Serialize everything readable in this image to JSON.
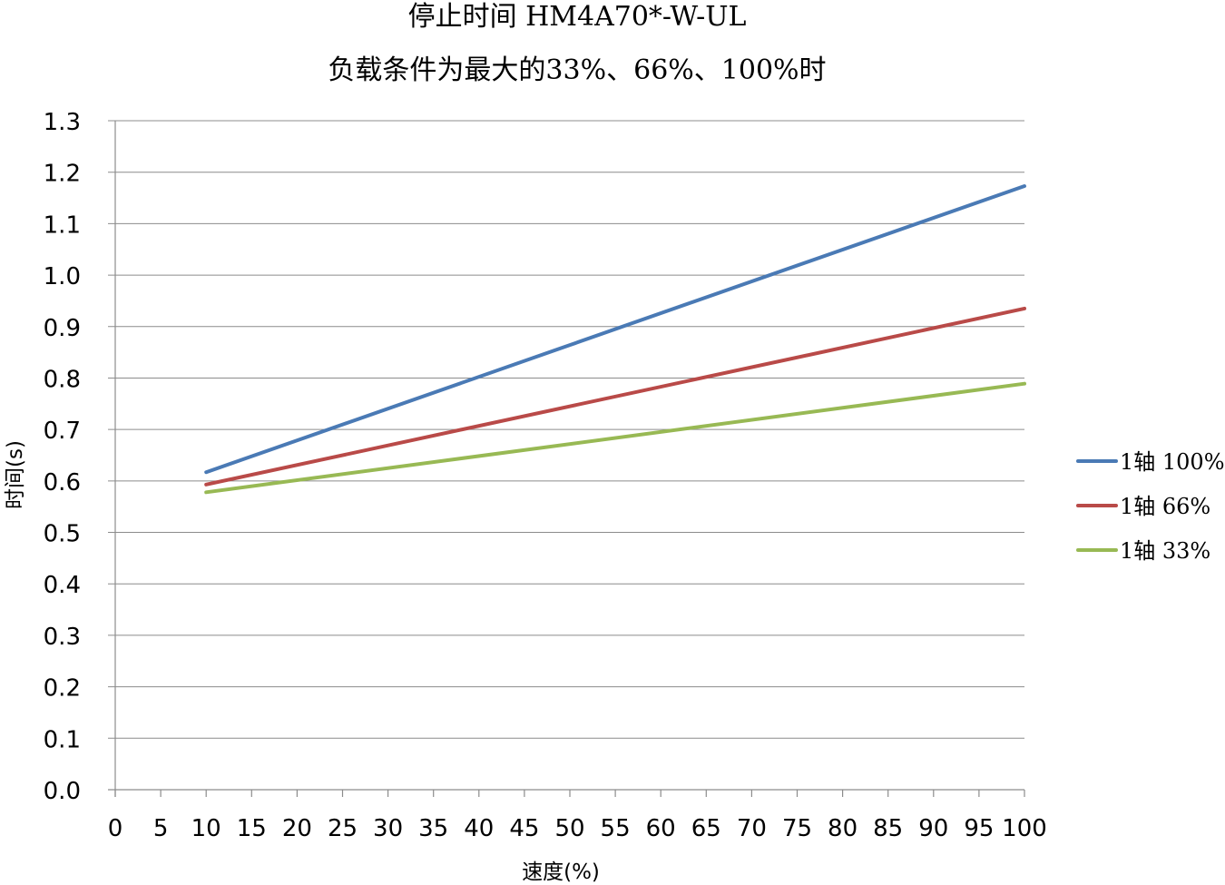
{
  "chart_data": {
    "type": "line",
    "title": "停止时间 HM4A70*-W-UL",
    "subtitle": "负载条件为最大的33%、66%、100%时",
    "xlabel": "速度(%)",
    "ylabel": "时间(s)",
    "xlim": [
      0,
      100
    ],
    "ylim": [
      0,
      1.3
    ],
    "x_ticks": [
      "0",
      "5",
      "10",
      "15",
      "20",
      "25",
      "30",
      "35",
      "40",
      "45",
      "50",
      "55",
      "60",
      "65",
      "70",
      "75",
      "80",
      "85",
      "90",
      "95",
      "100"
    ],
    "y_ticks": [
      "0.0",
      "0.1",
      "0.2",
      "0.3",
      "0.4",
      "0.5",
      "0.6",
      "0.7",
      "0.8",
      "0.9",
      "1.0",
      "1.1",
      "1.2",
      "1.3"
    ],
    "grid": "horizontal",
    "legend_position": "right",
    "series": [
      {
        "name": "1轴 100%",
        "color": "#4a7ab5",
        "x": [
          10,
          100
        ],
        "y": [
          0.617,
          1.173
        ]
      },
      {
        "name": "1轴 66%",
        "color": "#b94a48",
        "x": [
          10,
          100
        ],
        "y": [
          0.593,
          0.935
        ]
      },
      {
        "name": "1轴 33%",
        "color": "#98b954",
        "x": [
          10,
          100
        ],
        "y": [
          0.578,
          0.789
        ]
      }
    ]
  }
}
